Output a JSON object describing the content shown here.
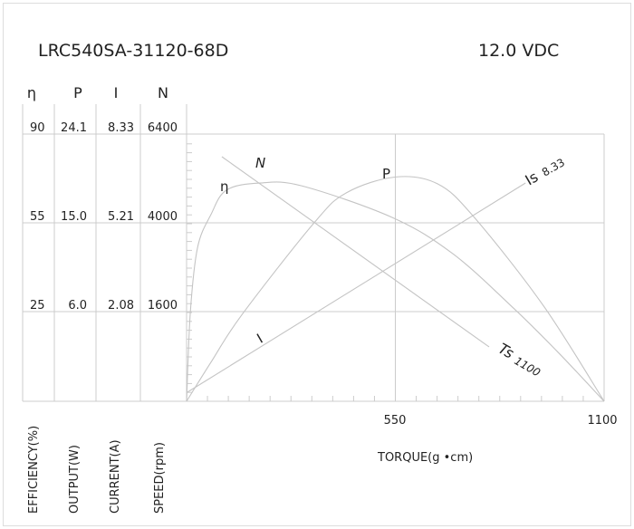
{
  "header": {
    "model": "LRC540SA-31120-68D",
    "voltage": "12.0 VDC"
  },
  "chart_data": {
    "type": "line",
    "xlabel": "TORQUE(g •cm)",
    "xlim": [
      0,
      1100
    ],
    "xticks": [
      "550",
      "1100"
    ],
    "grid": true,
    "axes": [
      {
        "symbol": "η",
        "label": "EFFICIENCY(%)",
        "ticks": [
          "90",
          "55",
          "25"
        ],
        "tick_values": [
          0,
          25,
          55,
          90
        ]
      },
      {
        "symbol": "P",
        "label": "OUTPUT(W)",
        "ticks": [
          "24.1",
          "15.0",
          "6.0"
        ],
        "tick_values": [
          0,
          6.0,
          15.0,
          24.1
        ]
      },
      {
        "symbol": "I",
        "label": "CURRENT(A)",
        "ticks": [
          "8.33",
          "5.21",
          "2.08"
        ],
        "tick_values": [
          0,
          2.08,
          5.21,
          8.33
        ]
      },
      {
        "symbol": "N",
        "label": "SPEED(rpm)",
        "ticks": [
          "6400",
          "4000",
          "1600"
        ],
        "tick_values": [
          0,
          1600,
          4000,
          6400
        ]
      }
    ],
    "series": [
      {
        "name": "η",
        "axis": 0,
        "x": [
          0,
          10,
          29,
          64,
          105,
          193,
          303,
          542,
          701,
          861,
          981,
          1100
        ],
        "y": [
          0,
          25,
          46.7,
          58.2,
          67.9,
          70.7,
          69.6,
          57.1,
          44.6,
          26.2,
          13.4,
          0
        ]
      },
      {
        "name": "P",
        "axis": 1,
        "x": [
          0,
          64,
          146,
          336,
          422,
          551,
          661,
          757,
          940,
          1100
        ],
        "y": [
          0,
          2.6,
          5.8,
          15.0,
          18.1,
          19.7,
          19.0,
          15.6,
          6.6,
          0
        ]
      },
      {
        "name": "I",
        "axis": 2,
        "x": [
          2,
          893
        ],
        "y": [
          0.21,
          6.61
        ]
      },
      {
        "name": "N",
        "axis": 3,
        "x": [
          93,
          797
        ],
        "y": [
          5788,
          970
        ]
      }
    ],
    "annotations": [
      {
        "text": "Is",
        "value": "8.33"
      },
      {
        "text": "Ts",
        "value": "1100"
      }
    ]
  }
}
